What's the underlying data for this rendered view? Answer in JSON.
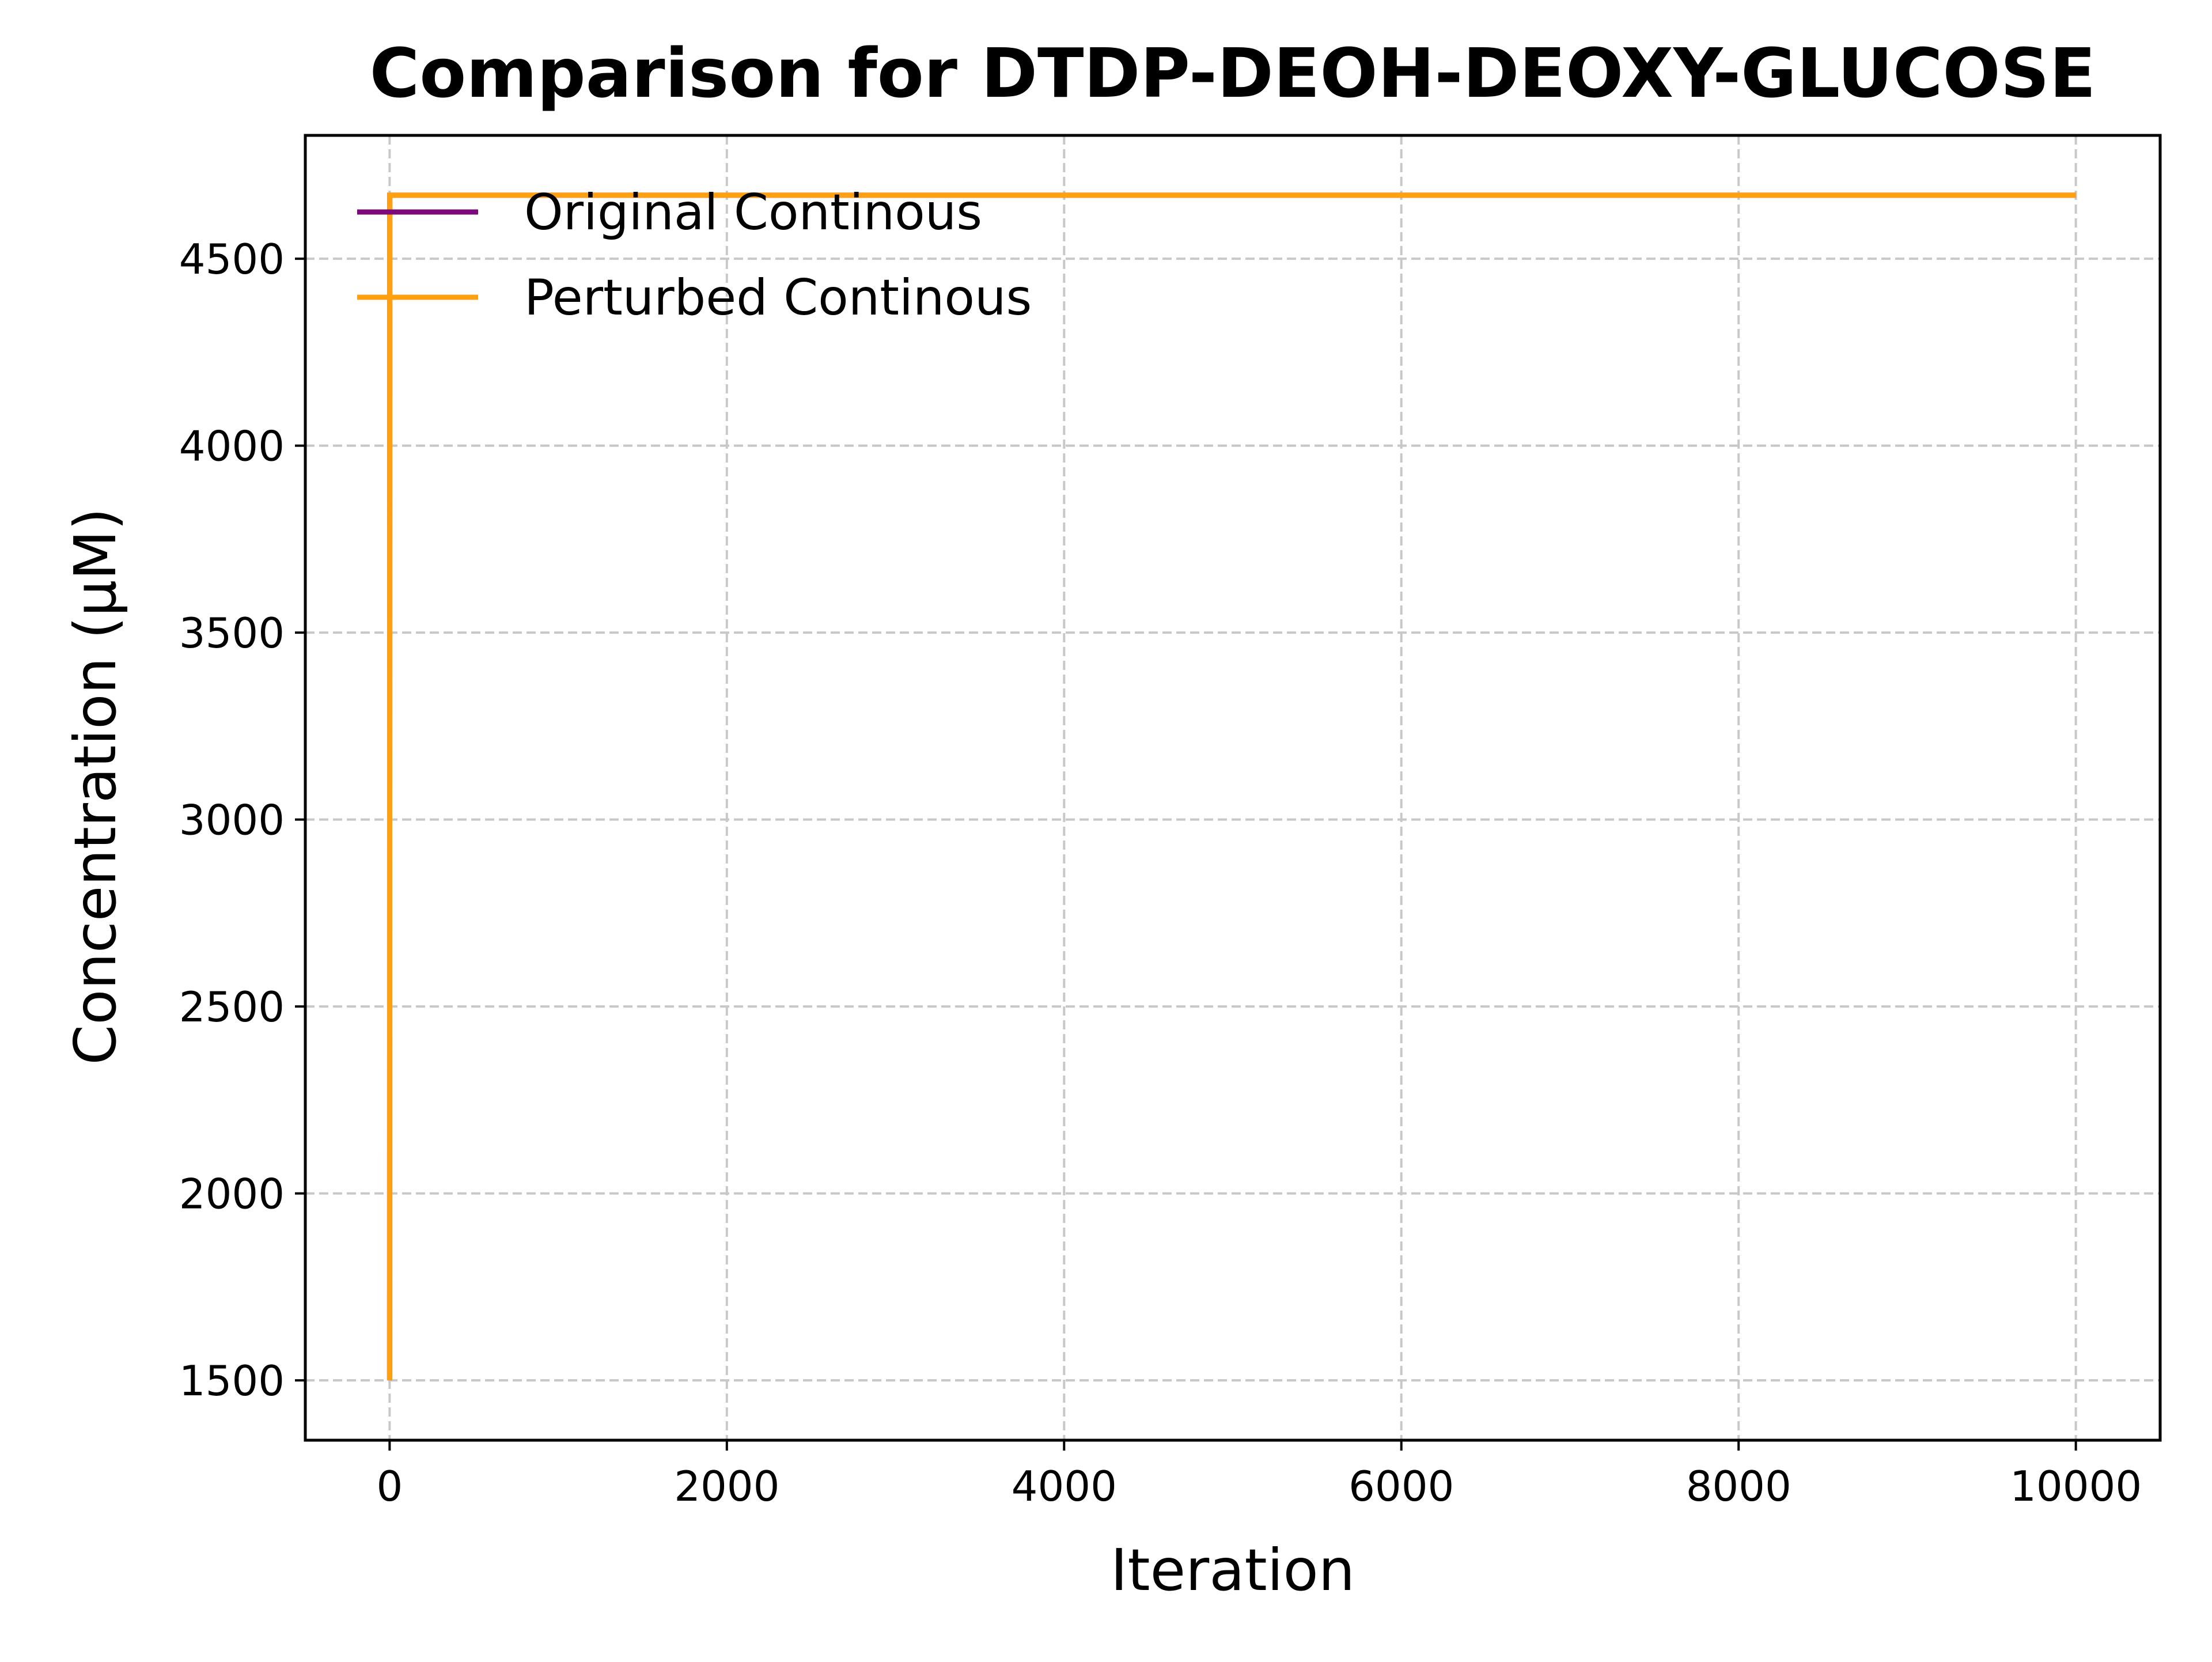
{
  "chart_data": {
    "type": "line",
    "title": "Comparison for DTDP-DEOH-DEOXY-GLUCOSE",
    "xlabel": "Iteration",
    "ylabel": "Concentration (μM)",
    "xlim": [
      -500,
      10500
    ],
    "ylim": [
      1340,
      4830
    ],
    "xticks": [
      0,
      2000,
      4000,
      6000,
      8000,
      10000
    ],
    "xtick_labels": [
      "0",
      "2000",
      "4000",
      "6000",
      "8000",
      "10000"
    ],
    "yticks": [
      1500,
      2000,
      2500,
      3000,
      3500,
      4000,
      4500
    ],
    "ytick_labels": [
      "1500",
      "2000",
      "2500",
      "3000",
      "3500",
      "4000",
      "4500"
    ],
    "grid": true,
    "legend_position": "upper-left",
    "series": [
      {
        "name": "Original Continous",
        "color": "#7b0a7b",
        "x": [
          0,
          1,
          10000
        ],
        "y": [
          1500,
          4670,
          4670
        ]
      },
      {
        "name": "Perturbed Continous",
        "color": "#ffa010",
        "x": [
          0,
          1,
          10000
        ],
        "y": [
          1500,
          4670,
          4670
        ]
      }
    ]
  }
}
